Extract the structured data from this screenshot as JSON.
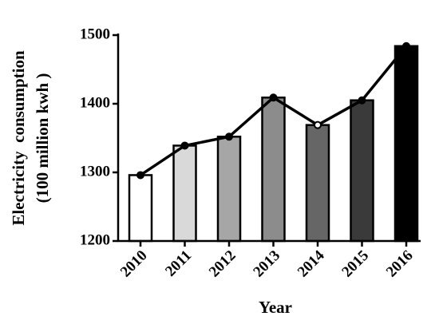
{
  "chart_data": {
    "type": "bar",
    "xlabel": "Year",
    "ylabel": [
      "Electricity  consumption",
      "(100 million kwh )"
    ],
    "categories": [
      "2010",
      "2011",
      "2012",
      "2013",
      "2014",
      "2015",
      "2016"
    ],
    "values": [
      1296,
      1339,
      1352,
      1409,
      1369,
      1405,
      1484
    ],
    "colors": [
      "#ffffff",
      "#d9d9d9",
      "#a6a6a6",
      "#8c8c8c",
      "#666666",
      "#3a3a3a",
      "#000000"
    ],
    "line_overlay": true,
    "line_color": "#000000",
    "ylim": [
      1200,
      1500
    ],
    "yticks": [
      1200,
      1300,
      1400,
      1500
    ]
  }
}
